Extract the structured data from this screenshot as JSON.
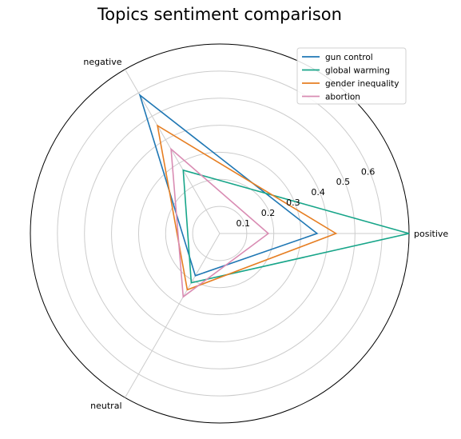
{
  "chart_data": {
    "type": "radar",
    "title": "Topics sentiment comparison",
    "axes": [
      "positive",
      "negative",
      "neutral"
    ],
    "r_ticks": [
      "0.1",
      "0.2",
      "0.3",
      "0.4",
      "0.5",
      "0.6"
    ],
    "r_range": [
      0,
      0.7
    ],
    "grid": true,
    "legend_position": "top-right",
    "series": [
      {
        "name": "gun control",
        "color": "#1f77b4",
        "values": [
          0.36,
          0.59,
          0.18
        ]
      },
      {
        "name": "global warming",
        "color": "#17a589",
        "values": [
          0.7,
          0.27,
          0.21
        ]
      },
      {
        "name": "gender inequality",
        "color": "#e67e22",
        "values": [
          0.43,
          0.46,
          0.24
        ]
      },
      {
        "name": "abortion",
        "color": "#d98cb3",
        "values": [
          0.18,
          0.36,
          0.27
        ]
      }
    ]
  }
}
